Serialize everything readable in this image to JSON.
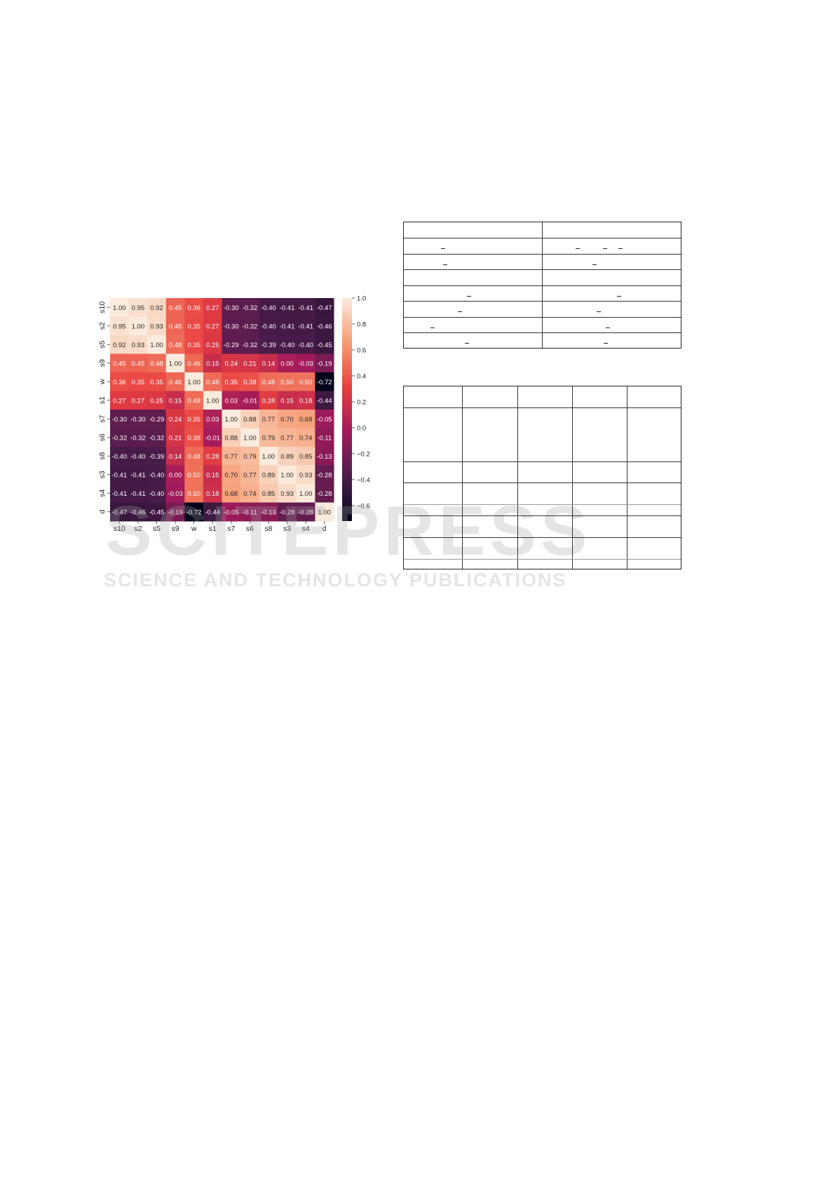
{
  "chart_data": {
    "type": "heatmap",
    "rows": [
      "s10",
      "s2",
      "s5",
      "s9",
      "w",
      "s1",
      "s7",
      "s6",
      "s8",
      "s3",
      "s4",
      "d"
    ],
    "columns": [
      "s10",
      "s2",
      "s5",
      "s9",
      "w",
      "s1",
      "s7",
      "s6",
      "s8",
      "s3",
      "s4",
      "d"
    ],
    "values": [
      [
        1.0,
        0.95,
        0.92,
        0.45,
        0.36,
        0.27,
        -0.3,
        -0.32,
        -0.4,
        -0.41,
        -0.41,
        -0.47
      ],
      [
        0.95,
        1.0,
        0.93,
        0.45,
        0.35,
        0.27,
        -0.3,
        -0.32,
        -0.4,
        -0.41,
        -0.41,
        -0.46
      ],
      [
        0.92,
        0.93,
        1.0,
        0.48,
        0.35,
        0.25,
        -0.29,
        -0.32,
        -0.39,
        -0.4,
        -0.4,
        -0.45
      ],
      [
        0.45,
        0.45,
        0.48,
        1.0,
        0.46,
        0.15,
        0.24,
        0.21,
        0.14,
        -0.0,
        -0.03,
        -0.19
      ],
      [
        0.36,
        0.35,
        0.35,
        0.46,
        1.0,
        0.48,
        0.35,
        0.38,
        0.48,
        0.5,
        0.5,
        -0.72
      ],
      [
        0.27,
        0.27,
        0.25,
        0.15,
        0.48,
        1.0,
        0.03,
        -0.01,
        0.28,
        0.15,
        0.18,
        -0.44
      ],
      [
        -0.3,
        -0.3,
        -0.29,
        0.24,
        0.35,
        0.03,
        1.0,
        0.88,
        0.77,
        0.7,
        0.68,
        -0.05
      ],
      [
        -0.32,
        -0.32,
        -0.32,
        0.21,
        0.38,
        -0.01,
        0.88,
        1.0,
        0.79,
        0.77,
        0.74,
        -0.11
      ],
      [
        -0.4,
        -0.4,
        -0.39,
        0.14,
        0.48,
        0.28,
        0.77,
        0.79,
        1.0,
        0.89,
        0.85,
        -0.13
      ],
      [
        -0.41,
        -0.41,
        -0.4,
        -0.0,
        0.5,
        0.15,
        0.7,
        0.77,
        0.89,
        1.0,
        0.93,
        -0.28
      ],
      [
        -0.41,
        -0.41,
        -0.4,
        -0.03,
        0.5,
        0.18,
        0.68,
        0.74,
        0.85,
        0.93,
        1.0,
        -0.28
      ],
      [
        -0.47,
        -0.46,
        -0.45,
        -0.19,
        -0.72,
        -0.44,
        -0.05,
        -0.11,
        -0.13,
        -0.28,
        -0.28,
        1.0
      ]
    ],
    "colorbar": {
      "range": [
        -0.72,
        1.0
      ],
      "ticks": [
        "1.0",
        "0.8",
        "0.6",
        "0.4",
        "0.2",
        "0.0",
        "-0.2",
        "-0.4",
        "-0.6"
      ],
      "colormap": "rocket"
    },
    "annotation_format": "2 decimals"
  },
  "watermark": {
    "line1": "SCITEPRESS",
    "line2": "SCIENCE AND TECHNOLOGY PUBLICATIONS"
  }
}
